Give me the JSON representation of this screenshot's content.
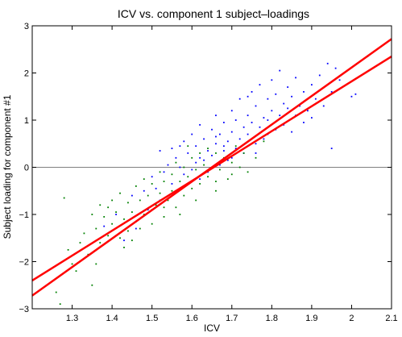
{
  "chart_data": {
    "type": "scatter",
    "title": "ICV vs. component 1 subject–loadings",
    "xlabel": "ICV",
    "ylabel": "Subject loading for component #1",
    "xlim": [
      1.2,
      2.1
    ],
    "ylim": [
      -3,
      3
    ],
    "xticks": [
      "1.3",
      "1.4",
      "1.5",
      "1.6",
      "1.7",
      "1.8",
      "1.9",
      "2",
      "2.1"
    ],
    "yticks": [
      "−3",
      "−2",
      "−1",
      "0",
      "1",
      "2",
      "3"
    ],
    "grid": false,
    "zero_line": 0,
    "colors": {
      "group_a": "#0000ff",
      "group_b": "#008000",
      "fit": "#ff0000",
      "zero": "#808080"
    },
    "series": [
      {
        "color": "#0000ff",
        "points": [
          [
            1.38,
            -1.25
          ],
          [
            1.41,
            -1.0
          ],
          [
            1.43,
            -1.55
          ],
          [
            1.45,
            -0.6
          ],
          [
            1.46,
            -1.3
          ],
          [
            1.48,
            -0.5
          ],
          [
            1.49,
            -0.9
          ],
          [
            1.5,
            -0.2
          ],
          [
            1.51,
            -0.45
          ],
          [
            1.52,
            -0.7
          ],
          [
            1.52,
            0.35
          ],
          [
            1.53,
            -0.1
          ],
          [
            1.54,
            0.05
          ],
          [
            1.55,
            -0.35
          ],
          [
            1.55,
            0.4
          ],
          [
            1.56,
            0.2
          ],
          [
            1.56,
            -0.5
          ],
          [
            1.57,
            0.0
          ],
          [
            1.58,
            -0.15
          ],
          [
            1.58,
            0.55
          ],
          [
            1.59,
            0.3
          ],
          [
            1.6,
            -0.05
          ],
          [
            1.6,
            0.7
          ],
          [
            1.61,
            0.1
          ],
          [
            1.61,
            0.45
          ],
          [
            1.62,
            -0.25
          ],
          [
            1.62,
            0.9
          ],
          [
            1.63,
            0.15
          ],
          [
            1.63,
            0.6
          ],
          [
            1.64,
            0.35
          ],
          [
            1.64,
            -0.1
          ],
          [
            1.65,
            0.8
          ],
          [
            1.65,
            0.25
          ],
          [
            1.66,
            0.5
          ],
          [
            1.66,
            1.1
          ],
          [
            1.67,
            0.05
          ],
          [
            1.67,
            0.7
          ],
          [
            1.68,
            0.35
          ],
          [
            1.68,
            0.95
          ],
          [
            1.69,
            0.55
          ],
          [
            1.69,
            0.15
          ],
          [
            1.7,
            1.2
          ],
          [
            1.7,
            0.75
          ],
          [
            1.71,
            0.4
          ],
          [
            1.71,
            1.0
          ],
          [
            1.72,
            0.6
          ],
          [
            1.72,
            1.45
          ],
          [
            1.73,
            0.85
          ],
          [
            1.73,
            0.3
          ],
          [
            1.74,
            1.1
          ],
          [
            1.74,
            0.7
          ],
          [
            1.75,
            1.6
          ],
          [
            1.75,
            0.95
          ],
          [
            1.76,
            0.5
          ],
          [
            1.76,
            1.3
          ],
          [
            1.77,
            0.85
          ],
          [
            1.77,
            1.75
          ],
          [
            1.78,
            1.05
          ],
          [
            1.78,
            0.6
          ],
          [
            1.79,
            1.45
          ],
          [
            1.79,
            1.0
          ],
          [
            1.8,
            1.85
          ],
          [
            1.8,
            1.2
          ],
          [
            1.81,
            0.8
          ],
          [
            1.81,
            1.55
          ],
          [
            1.82,
            1.1
          ],
          [
            1.82,
            2.05
          ],
          [
            1.83,
            1.35
          ],
          [
            1.83,
            0.9
          ],
          [
            1.84,
            1.7
          ],
          [
            1.84,
            1.25
          ],
          [
            1.85,
            0.75
          ],
          [
            1.85,
            1.5
          ],
          [
            1.86,
            1.1
          ],
          [
            1.86,
            1.9
          ],
          [
            1.87,
            1.3
          ],
          [
            1.88,
            0.95
          ],
          [
            1.88,
            1.6
          ],
          [
            1.89,
            1.2
          ],
          [
            1.9,
            1.75
          ],
          [
            1.9,
            1.05
          ],
          [
            1.91,
            1.45
          ],
          [
            1.92,
            1.95
          ],
          [
            1.93,
            1.3
          ],
          [
            1.94,
            2.2
          ],
          [
            1.95,
            0.4
          ],
          [
            1.95,
            1.6
          ],
          [
            1.96,
            2.1
          ],
          [
            1.97,
            1.85
          ],
          [
            2.0,
            1.5
          ],
          [
            2.01,
            1.55
          ],
          [
            2.04,
            2.35
          ],
          [
            1.74,
            1.5
          ],
          [
            1.76,
            0.3
          ],
          [
            1.68,
            0.45
          ],
          [
            1.62,
            0.2
          ],
          [
            1.57,
            0.45
          ],
          [
            1.7,
            0.2
          ],
          [
            1.79,
            0.7
          ],
          [
            1.66,
            0.65
          ]
        ]
      },
      {
        "color": "#008000",
        "points": [
          [
            1.26,
            -2.65
          ],
          [
            1.27,
            -2.9
          ],
          [
            1.28,
            -0.65
          ],
          [
            1.29,
            -1.75
          ],
          [
            1.3,
            -2.05
          ],
          [
            1.31,
            -2.2
          ],
          [
            1.32,
            -1.6
          ],
          [
            1.33,
            -1.4
          ],
          [
            1.34,
            -1.85
          ],
          [
            1.35,
            -1.0
          ],
          [
            1.35,
            -2.5
          ],
          [
            1.36,
            -1.3
          ],
          [
            1.37,
            -0.8
          ],
          [
            1.37,
            -1.6
          ],
          [
            1.38,
            -1.05
          ],
          [
            1.39,
            -1.45
          ],
          [
            1.4,
            -0.7
          ],
          [
            1.4,
            -1.2
          ],
          [
            1.41,
            -0.95
          ],
          [
            1.42,
            -1.5
          ],
          [
            1.42,
            -0.55
          ],
          [
            1.43,
            -1.1
          ],
          [
            1.44,
            -0.75
          ],
          [
            1.44,
            -1.35
          ],
          [
            1.45,
            -0.95
          ],
          [
            1.46,
            -0.4
          ],
          [
            1.46,
            -1.15
          ],
          [
            1.47,
            -0.7
          ],
          [
            1.48,
            -1.0
          ],
          [
            1.48,
            -0.25
          ],
          [
            1.49,
            -0.6
          ],
          [
            1.5,
            -1.2
          ],
          [
            1.5,
            -0.35
          ],
          [
            1.51,
            -0.8
          ],
          [
            1.52,
            -0.1
          ],
          [
            1.52,
            -0.55
          ],
          [
            1.53,
            -1.05
          ],
          [
            1.53,
            -0.3
          ],
          [
            1.54,
            -0.7
          ],
          [
            1.55,
            -0.15
          ],
          [
            1.55,
            -0.5
          ],
          [
            1.56,
            0.1
          ],
          [
            1.56,
            -0.85
          ],
          [
            1.57,
            -0.3
          ],
          [
            1.58,
            0.0
          ],
          [
            1.58,
            -0.6
          ],
          [
            1.59,
            -0.2
          ],
          [
            1.6,
            0.2
          ],
          [
            1.6,
            -0.45
          ],
          [
            1.61,
            -0.05
          ],
          [
            1.62,
            0.3
          ],
          [
            1.62,
            -0.35
          ],
          [
            1.63,
            0.05
          ],
          [
            1.64,
            -0.2
          ],
          [
            1.64,
            0.4
          ],
          [
            1.65,
            0.0
          ],
          [
            1.66,
            -0.3
          ],
          [
            1.66,
            0.3
          ],
          [
            1.67,
            -0.05
          ],
          [
            1.68,
            0.2
          ],
          [
            1.69,
            -0.25
          ],
          [
            1.7,
            0.1
          ],
          [
            1.71,
            0.45
          ],
          [
            1.72,
            0.0
          ],
          [
            1.73,
            0.3
          ],
          [
            1.74,
            -0.1
          ],
          [
            1.76,
            0.2
          ],
          [
            1.78,
            0.55
          ],
          [
            1.45,
            -1.55
          ],
          [
            1.5,
            -0.9
          ],
          [
            1.36,
            -2.05
          ],
          [
            1.39,
            -0.85
          ],
          [
            1.43,
            -1.7
          ],
          [
            1.47,
            -1.3
          ],
          [
            1.53,
            -0.85
          ],
          [
            1.57,
            -1.0
          ],
          [
            1.61,
            -0.7
          ],
          [
            1.66,
            -0.5
          ],
          [
            1.7,
            -0.15
          ],
          [
            1.59,
            0.45
          ]
        ]
      }
    ],
    "fit_lines": [
      {
        "color": "#ff0000",
        "points": [
          [
            1.2,
            -2.4
          ],
          [
            2.1,
            2.35
          ]
        ]
      },
      {
        "color": "#ff0000",
        "points": [
          [
            1.2,
            -2.72
          ],
          [
            2.1,
            2.72
          ]
        ]
      }
    ]
  }
}
